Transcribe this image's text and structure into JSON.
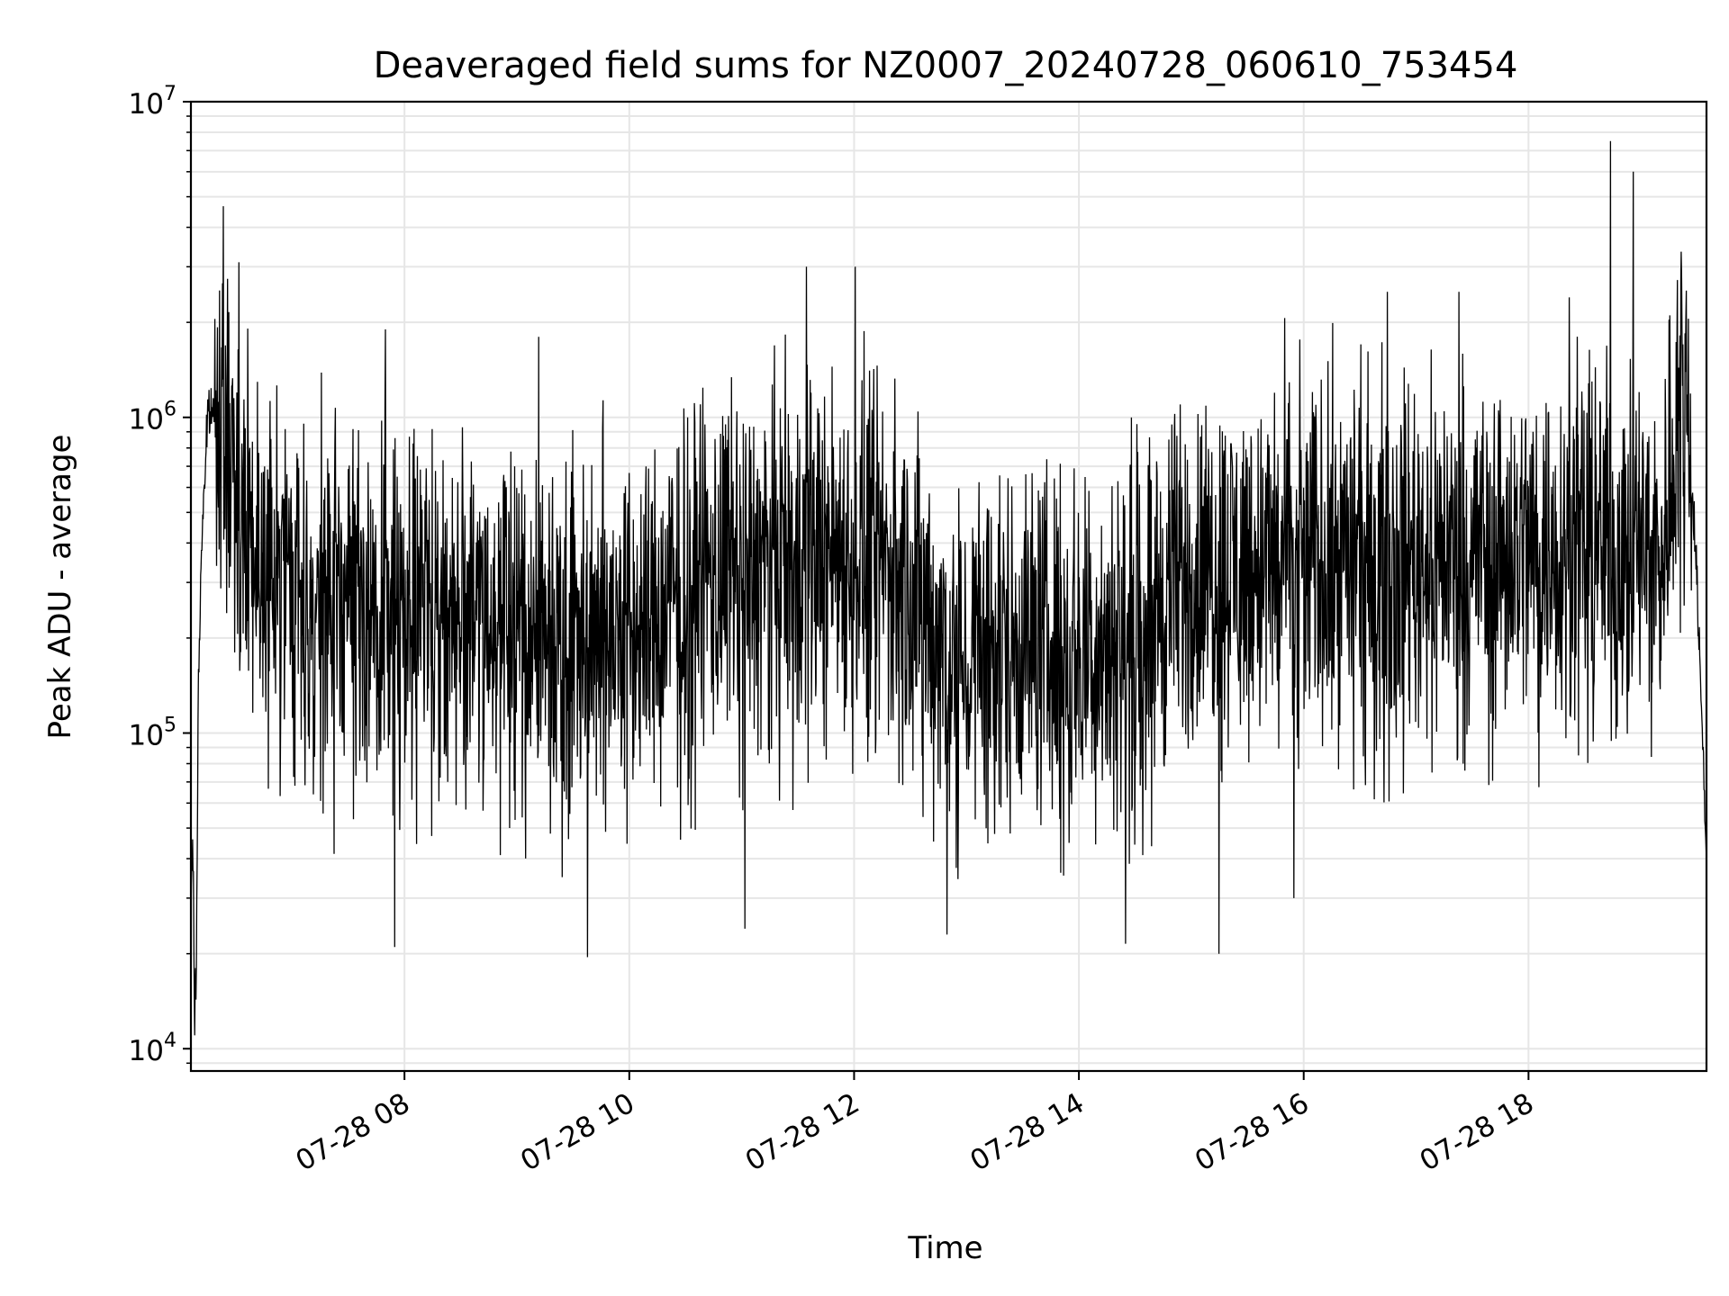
{
  "chart_data": {
    "type": "line",
    "title": "Deaveraged field sums for NZ0007_20240728_060610_753454",
    "xlabel": "Time",
    "ylabel": "Peak ADU - average",
    "yscale": "log",
    "xlim": [
      "07-28 06:06",
      "07-28 19:35"
    ],
    "ylim": [
      8500,
      10000000
    ],
    "x_ticks": [
      "07-28 08",
      "07-28 10",
      "07-28 12",
      "07-28 14",
      "07-28 16",
      "07-28 18"
    ],
    "y_ticks": [
      {
        "base": "10",
        "exp": "4",
        "value": 10000
      },
      {
        "base": "10",
        "exp": "5",
        "value": 100000
      },
      {
        "base": "10",
        "exp": "6",
        "value": 1000000
      },
      {
        "base": "10",
        "exp": "7",
        "value": 10000000
      }
    ],
    "grid": true,
    "line_color": "#000000",
    "grid_color": "#e6e6e6",
    "series": [
      {
        "x": [
          "07-28 06:06",
          "07-28 06:07",
          "07-28 06:08",
          "07-28 06:09",
          "07-28 06:10",
          "07-28 06:12",
          "07-28 06:15",
          "07-28 06:20",
          "07-28 06:25",
          "07-28 06:30",
          "07-28 06:35",
          "07-28 06:40",
          "07-28 06:45",
          "07-28 06:50",
          "07-28 06:55",
          "07-28 07:00",
          "07-28 07:10",
          "07-28 07:20",
          "07-28 07:30",
          "07-28 07:40",
          "07-28 07:50",
          "07-28 08:00",
          "07-28 08:15",
          "07-28 08:30",
          "07-28 08:45",
          "07-28 09:00",
          "07-28 09:15",
          "07-28 09:30",
          "07-28 09:45",
          "07-28 10:00",
          "07-28 10:15",
          "07-28 10:30",
          "07-28 10:45",
          "07-28 11:00",
          "07-28 11:15",
          "07-28 11:30",
          "07-28 11:45",
          "07-28 12:00",
          "07-28 12:15",
          "07-28 12:30",
          "07-28 12:45",
          "07-28 13:00",
          "07-28 13:15",
          "07-28 13:30",
          "07-28 13:45",
          "07-28 14:00",
          "07-28 14:15",
          "07-28 14:30",
          "07-28 14:45",
          "07-28 15:00",
          "07-28 15:15",
          "07-28 15:30",
          "07-28 15:45",
          "07-28 16:00",
          "07-28 16:15",
          "07-28 16:30",
          "07-28 16:45",
          "07-28 17:00",
          "07-28 17:15",
          "07-28 17:30",
          "07-28 17:45",
          "07-28 18:00",
          "07-28 18:15",
          "07-28 18:30",
          "07-28 18:45",
          "07-28 19:00",
          "07-28 19:10",
          "07-28 19:15",
          "07-28 19:20",
          "07-28 19:25",
          "07-28 19:30",
          "07-28 19:35"
        ],
        "y": [
          25000,
          50000,
          12000,
          20000,
          150000,
          450000,
          1000000,
          1100000,
          900000,
          650000,
          480000,
          420000,
          380000,
          330000,
          290000,
          270000,
          260000,
          250000,
          270000,
          260000,
          250000,
          260000,
          255000,
          250000,
          240000,
          230000,
          220000,
          215000,
          220000,
          210000,
          230000,
          300000,
          320000,
          330000,
          340000,
          360000,
          400000,
          380000,
          360000,
          300000,
          200000,
          180000,
          190000,
          200000,
          190000,
          185000,
          200000,
          230000,
          260000,
          310000,
          340000,
          340000,
          350000,
          350000,
          360000,
          370000,
          370000,
          380000,
          380000,
          385000,
          390000,
          390000,
          395000,
          400000,
          405000,
          395000,
          350000,
          600000,
          1200000,
          1100000,
          300000,
          40000
        ]
      }
    ],
    "spikes": [
      {
        "x": "07-28 06:32",
        "y": 3100000
      },
      {
        "x": "07-28 07:50",
        "y": 1900000
      },
      {
        "x": "07-28 09:12",
        "y": 1800000
      },
      {
        "x": "07-28 10:38",
        "y": 1100000
      },
      {
        "x": "07-28 11:35",
        "y": 3000000
      },
      {
        "x": "07-28 12:01",
        "y": 3000000
      },
      {
        "x": "07-28 14:50",
        "y": 950000
      },
      {
        "x": "07-28 16:45",
        "y": 2500000
      },
      {
        "x": "07-28 17:23",
        "y": 2500000
      },
      {
        "x": "07-28 18:22",
        "y": 2400000
      },
      {
        "x": "07-28 18:44",
        "y": 7500000
      },
      {
        "x": "07-28 18:56",
        "y": 6000000
      },
      {
        "x": "07-28 07:55",
        "y": 21000
      },
      {
        "x": "07-28 09:38",
        "y": 19500
      },
      {
        "x": "07-28 11:02",
        "y": 24000
      },
      {
        "x": "07-28 12:50",
        "y": 23000
      },
      {
        "x": "07-28 14:25",
        "y": 21500
      },
      {
        "x": "07-28 15:15",
        "y": 20000
      },
      {
        "x": "07-28 15:55",
        "y": 30000
      }
    ]
  }
}
